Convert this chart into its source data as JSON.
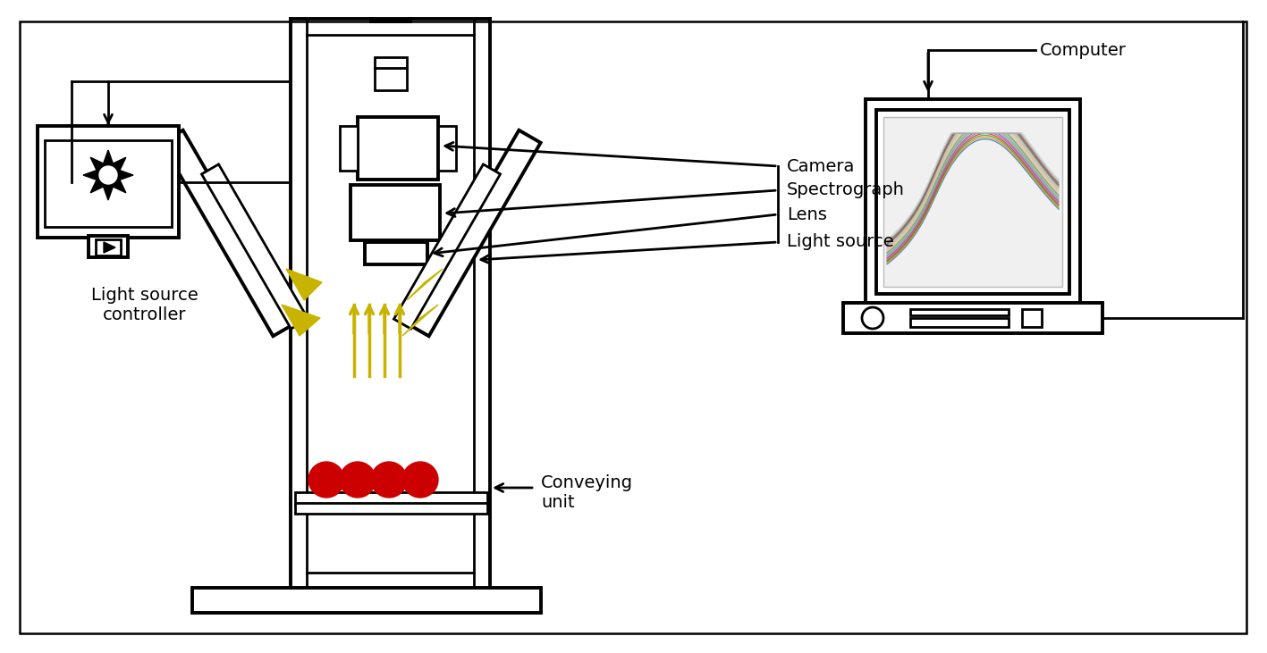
{
  "bg_color": "#ffffff",
  "line_color": "#000000",
  "gold_color": "#c8b400",
  "red_color": "#cc0000",
  "labels": {
    "camera": "Camera",
    "spectrograph": "Spectrograph",
    "lens": "Lens",
    "light_source": "Light source",
    "computer": "Computer",
    "light_source_controller": "Light source\ncontroller",
    "conveying_unit": "Conveying\nunit"
  },
  "font_size": 14
}
